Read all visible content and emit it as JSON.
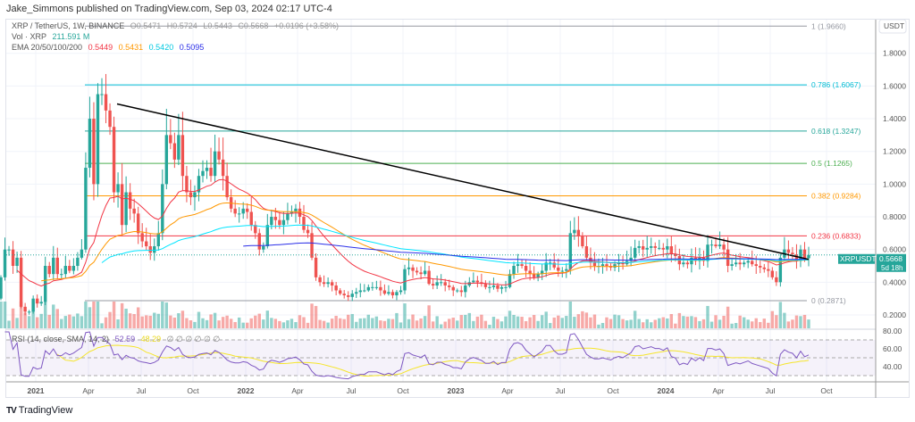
{
  "header": {
    "published": "Jake_Simmons published on TradingView.com, Sep 03, 2024 02:17 UTC-4"
  },
  "legend": {
    "symbol": "XRP / TetherUS, 1W, BINANCE",
    "o": "O0.5471",
    "h": "H0.5724",
    "l": "L0.5443",
    "c": "C0.5668",
    "change": "+0.0196 (+3.58%)",
    "vol_label": "Vol · XRP",
    "vol_value": "211.591 M",
    "ema_label": "EMA 20/50/100/200",
    "ema_values": [
      "0.5449",
      "0.5431",
      "0.5420",
      "0.5095"
    ]
  },
  "rsi_legend": {
    "label": "RSI (14, close, SMA, 14, 2)",
    "rsi": "52.59",
    "sma": "48.29",
    "empty": "∅ ∅ ∅ ∅ ∅ ∅"
  },
  "price_axis": {
    "currency": "USDT",
    "ticks": [
      "1.8000",
      "1.6000",
      "1.4000",
      "1.2000",
      "1.0000",
      "0.8000",
      "0.6000",
      "0.4000",
      "0.2000"
    ],
    "symbol_tag": "XRPUSDT",
    "last_price": "0.5668",
    "countdown": "5d 18h"
  },
  "rsi_axis": {
    "ticks": [
      "80.00",
      "60.00",
      "40.00"
    ]
  },
  "time_axis": [
    "2021",
    "Apr",
    "Jul",
    "Oct",
    "2022",
    "Apr",
    "Jul",
    "Oct",
    "2023",
    "Apr",
    "Jul",
    "Oct",
    "2024",
    "Apr",
    "Jul",
    "Oct"
  ],
  "fib_levels": [
    {
      "label": "1 (1.9660)",
      "price": 1.966,
      "color": "#9598a1"
    },
    {
      "label": "0.786 (1.6067)",
      "price": 1.6067,
      "color": "#00bcd4"
    },
    {
      "label": "0.618 (1.3247)",
      "price": 1.3247,
      "color": "#26a69a"
    },
    {
      "label": "0.5 (1.1265)",
      "price": 1.1265,
      "color": "#4caf50"
    },
    {
      "label": "0.382 (0.9284)",
      "price": 0.9284,
      "color": "#ff9800"
    },
    {
      "label": "0.236 (0.6833)",
      "price": 0.6833,
      "color": "#f23645"
    },
    {
      "label": "0 (0.2871)",
      "price": 0.2871,
      "color": "#9598a1"
    }
  ],
  "colors": {
    "up": "#26a69a",
    "down": "#ef5350",
    "ema20": "#f23645",
    "ema50": "#ff9800",
    "ema100": "#00e5ff",
    "ema200": "#2a2ee8",
    "rsi": "#7e57c2",
    "rsi_sma": "#f5e52a",
    "trendline": "#000000"
  },
  "chart_data": {
    "type": "candlestick",
    "interval": "1W",
    "first_open": 0.3,
    "closes": [
      0.43,
      0.6,
      0.6,
      0.5,
      0.55,
      0.25,
      0.22,
      0.22,
      0.3,
      0.27,
      0.28,
      0.5,
      0.45,
      0.55,
      0.45,
      0.45,
      0.5,
      0.47,
      0.5,
      0.55,
      0.6,
      1.1,
      1.4,
      1.0,
      1.55,
      1.55,
      1.45,
      1.35,
      0.95,
      1.0,
      0.75,
      0.95,
      0.85,
      0.82,
      0.7,
      0.65,
      0.62,
      0.58,
      0.62,
      0.7,
      1.0,
      1.3,
      1.25,
      1.15,
      1.3,
      1.05,
      0.95,
      0.92,
      0.95,
      1.05,
      1.08,
      1.1,
      1.05,
      1.2,
      1.15,
      1.05,
      0.92,
      0.85,
      0.82,
      0.82,
      0.85,
      0.83,
      0.75,
      0.7,
      0.6,
      0.62,
      0.75,
      0.8,
      0.78,
      0.75,
      0.78,
      0.82,
      0.83,
      0.85,
      0.8,
      0.72,
      0.7,
      0.55,
      0.43,
      0.4,
      0.39,
      0.4,
      0.38,
      0.35,
      0.33,
      0.32,
      0.31,
      0.33,
      0.34,
      0.35,
      0.35,
      0.37,
      0.37,
      0.37,
      0.35,
      0.33,
      0.34,
      0.32,
      0.34,
      0.35,
      0.48,
      0.49,
      0.47,
      0.46,
      0.45,
      0.47,
      0.39,
      0.38,
      0.4,
      0.4,
      0.38,
      0.37,
      0.35,
      0.35,
      0.34,
      0.38,
      0.4,
      0.41,
      0.4,
      0.39,
      0.37,
      0.37,
      0.38,
      0.36,
      0.37,
      0.37,
      0.45,
      0.5,
      0.51,
      0.5,
      0.47,
      0.45,
      0.43,
      0.45,
      0.47,
      0.52,
      0.52,
      0.49,
      0.47,
      0.47,
      0.48,
      0.7,
      0.72,
      0.68,
      0.62,
      0.55,
      0.52,
      0.5,
      0.5,
      0.51,
      0.5,
      0.49,
      0.51,
      0.52,
      0.51,
      0.53,
      0.55,
      0.61,
      0.62,
      0.6,
      0.61,
      0.62,
      0.61,
      0.61,
      0.6,
      0.62,
      0.57,
      0.56,
      0.51,
      0.52,
      0.51,
      0.55,
      0.53,
      0.55,
      0.53,
      0.63,
      0.63,
      0.62,
      0.63,
      0.6,
      0.5,
      0.51,
      0.52,
      0.51,
      0.52,
      0.53,
      0.51,
      0.5,
      0.49,
      0.48,
      0.47,
      0.43,
      0.4,
      0.55,
      0.6,
      0.58,
      0.57,
      0.53,
      0.6,
      0.547,
      0.5668
    ],
    "trendline": {
      "from_price": 1.49,
      "to_price": 0.54,
      "from": "2021-05",
      "to": "2024-09"
    },
    "ylim": [
      0.1,
      2.0
    ],
    "rsi_bands": [
      30,
      50,
      70
    ]
  }
}
